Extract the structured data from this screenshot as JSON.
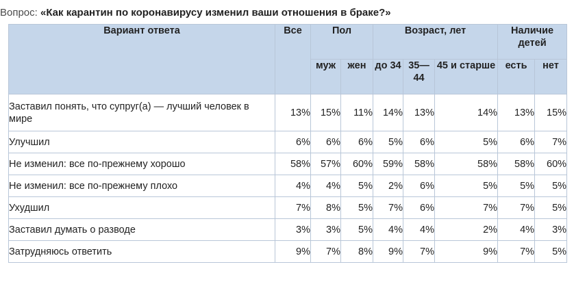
{
  "question": {
    "label": "Вопрос:",
    "text": "«Как карантин по коронавирусу изменил ваши отношения в браке?»"
  },
  "table": {
    "headers": {
      "variant": "Вариант ответа",
      "all": "Все",
      "gender": "Пол",
      "age": "Возраст, лет",
      "children": "Наличие детей",
      "male": "муж",
      "female": "жен",
      "age_under34": "до 34",
      "age_35_44": "35— 44",
      "age_45plus": "45 и старше",
      "children_yes": "есть",
      "children_no": "нет"
    },
    "rows": [
      {
        "label": "Заставил понять, что супруг(а) — лучший человек в мире",
        "values": [
          "13%",
          "15%",
          "11%",
          "14%",
          "13%",
          "14%",
          "13%",
          "15%"
        ]
      },
      {
        "label": "Улучшил",
        "values": [
          "6%",
          "6%",
          "6%",
          "5%",
          "6%",
          "5%",
          "6%",
          "7%"
        ]
      },
      {
        "label": "Не изменил: все по-прежнему хорошо",
        "values": [
          "58%",
          "57%",
          "60%",
          "59%",
          "58%",
          "58%",
          "58%",
          "60%"
        ]
      },
      {
        "label": "Не изменил: все по-прежнему плохо",
        "values": [
          "4%",
          "4%",
          "5%",
          "2%",
          "6%",
          "5%",
          "5%",
          "5%"
        ]
      },
      {
        "label": "Ухудшил",
        "values": [
          "7%",
          "8%",
          "5%",
          "7%",
          "6%",
          "7%",
          "7%",
          "5%"
        ]
      },
      {
        "label": "Заставил думать о разводе",
        "values": [
          "3%",
          "3%",
          "5%",
          "4%",
          "4%",
          "2%",
          "4%",
          "3%"
        ]
      },
      {
        "label": "Затрудняюсь ответить",
        "values": [
          "9%",
          "7%",
          "8%",
          "9%",
          "7%",
          "9%",
          "7%",
          "5%"
        ]
      }
    ]
  },
  "colors": {
    "header_bg": "#c5d6ea",
    "border": "#b8c6d8",
    "text": "#222222"
  }
}
